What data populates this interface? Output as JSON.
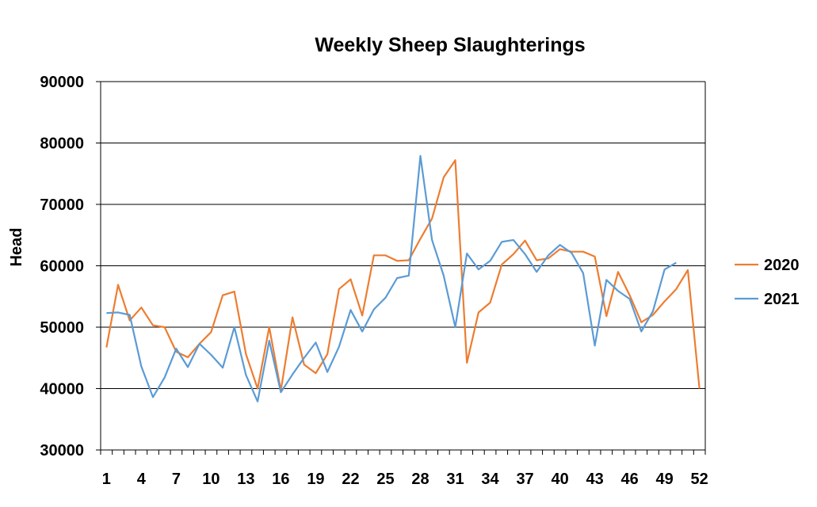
{
  "chart_data": {
    "type": "line",
    "title": "Weekly Sheep Slaughterings",
    "xlabel": "",
    "ylabel": "Head",
    "ylim": [
      30000,
      90000
    ],
    "xlim": [
      1,
      52
    ],
    "y_ticks": [
      "30000",
      "40000",
      "50000",
      "60000",
      "70000",
      "80000",
      "90000"
    ],
    "x_tick_labels": [
      "1",
      "4",
      "7",
      "10",
      "13",
      "16",
      "19",
      "22",
      "25",
      "28",
      "31",
      "34",
      "37",
      "40",
      "43",
      "46",
      "49",
      "52"
    ],
    "grid": "horizontal major gridlines",
    "legend_position": "right",
    "series": [
      {
        "name": "2020",
        "color": "#ED7D31",
        "x": [
          1,
          2,
          3,
          4,
          5,
          6,
          7,
          8,
          9,
          10,
          11,
          12,
          13,
          14,
          15,
          16,
          17,
          18,
          19,
          20,
          21,
          22,
          23,
          24,
          25,
          26,
          27,
          28,
          29,
          30,
          31,
          32,
          33,
          34,
          35,
          36,
          37,
          38,
          39,
          40,
          41,
          42,
          43,
          44,
          45,
          46,
          47,
          48,
          49,
          50,
          51,
          52
        ],
        "values": [
          46700,
          56900,
          51100,
          53200,
          50300,
          50000,
          46000,
          45100,
          47300,
          49200,
          55200,
          55800,
          45600,
          40000,
          50000,
          39700,
          51600,
          43900,
          42500,
          45600,
          56200,
          57800,
          51900,
          61700,
          61700,
          60800,
          60900,
          64400,
          67700,
          74400,
          77200,
          44200,
          52400,
          54000,
          60200,
          61900,
          64100,
          60900,
          61200,
          62700,
          62300,
          62300,
          61500,
          51800,
          59000,
          55200,
          50800,
          52000,
          54200,
          56200,
          59300,
          40000
        ]
      },
      {
        "name": "2021",
        "color": "#5B9BD5",
        "x": [
          1,
          2,
          3,
          4,
          5,
          6,
          7,
          8,
          9,
          10,
          11,
          12,
          13,
          14,
          15,
          16,
          17,
          18,
          19,
          20,
          21,
          22,
          23,
          24,
          25,
          26,
          27,
          28,
          29,
          30,
          31,
          32,
          33,
          34,
          35,
          36,
          37,
          38,
          39,
          40,
          41,
          42,
          43,
          44,
          45,
          46,
          47,
          48,
          49,
          50
        ],
        "values": [
          52300,
          52400,
          52000,
          43600,
          38600,
          41800,
          46500,
          43500,
          47300,
          45500,
          43400,
          50000,
          42200,
          37900,
          47800,
          39400,
          42300,
          45000,
          47500,
          42700,
          46800,
          52800,
          49300,
          52900,
          54800,
          58000,
          58400,
          77900,
          64200,
          58400,
          50000,
          62000,
          59400,
          60800,
          63900,
          64200,
          61900,
          59000,
          61700,
          63400,
          62100,
          58800,
          47000,
          57700,
          55900,
          54600,
          49300,
          52600,
          59400,
          60500
        ]
      }
    ]
  }
}
